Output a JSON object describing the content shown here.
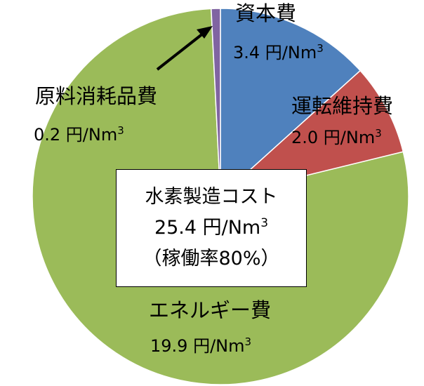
{
  "chart_data": {
    "type": "pie",
    "unit": "円/Nm",
    "unit_sup": "3",
    "slices": [
      {
        "name": "資本費",
        "value": 3.4,
        "value_label": "3.4 円/Nm",
        "color": "#4f81bd"
      },
      {
        "name": "運転維持費",
        "value": 2.0,
        "value_label": "2.0 円/Nm",
        "color": "#c0504d"
      },
      {
        "name": "エネルギー費",
        "value": 19.9,
        "value_label": "19.9 円/Nm",
        "color": "#9bbb59"
      },
      {
        "name": "原料消耗品費",
        "value": 0.2,
        "value_label": "0.2 円/Nm",
        "color": "#8064a2"
      }
    ],
    "center": {
      "line1": "水素製造コスト",
      "line2": "25.4 円/Nm",
      "line3": "（稼働率80%）"
    }
  }
}
